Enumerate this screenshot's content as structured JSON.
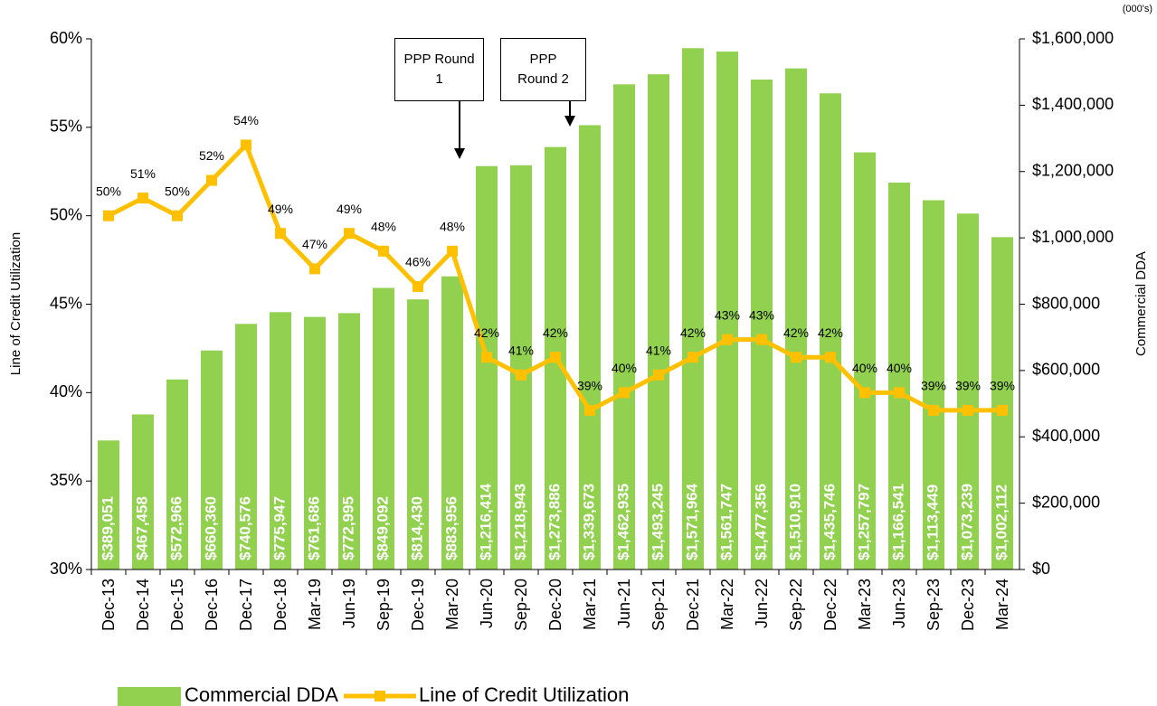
{
  "chart_data": {
    "type": "bar_line",
    "y_label": "Line of Credit Utilization",
    "y2_label": "Commercial DDA",
    "unit_note": "(000's)",
    "annotations": [
      {
        "text": "PPP Round 1"
      },
      {
        "text": "PPP Round 2"
      }
    ],
    "categories": [
      "Dec-13",
      "Dec-14",
      "Dec-15",
      "Dec-16",
      "Dec-17",
      "Dec-18",
      "Mar-19",
      "Jun-19",
      "Sep-19",
      "Dec-19",
      "Mar-20",
      "Jun-20",
      "Sep-20",
      "Dec-20",
      "Mar-21",
      "Jun-21",
      "Sep-21",
      "Dec-21",
      "Mar-22",
      "Jun-22",
      "Sep-22",
      "Dec-22",
      "Mar-23",
      "Jun-23",
      "Sep-23",
      "Dec-23",
      "Mar-24"
    ],
    "series": [
      {
        "name": "Commercial DDA",
        "kind": "bar",
        "axis": "y2",
        "color": "#92d050",
        "values": [
          389051,
          467458,
          572966,
          660360,
          740576,
          775947,
          761686,
          772995,
          849092,
          814430,
          883956,
          1216414,
          1218943,
          1273886,
          1339673,
          1462935,
          1493245,
          1571964,
          1561747,
          1477356,
          1510910,
          1435746,
          1257797,
          1166541,
          1113449,
          1073239,
          1002112
        ],
        "value_labels": [
          "$389,051",
          "$467,458",
          "$572,966",
          "$660,360",
          "$740,576",
          "$775,947",
          "$761,686",
          "$772,995",
          "$849,092",
          "$814,430",
          "$883,956",
          "$1,216,414",
          "$1,218,943",
          "$1,273,886",
          "$1,339,673",
          "$1,462,935",
          "$1,493,245",
          "$1,571,964",
          "$1,561,747",
          "$1,477,356",
          "$1,510,910",
          "$1,435,746",
          "$1,257,797",
          "$1,166,541",
          "$1,113,449",
          "$1,073,239",
          "$1,002,112"
        ]
      },
      {
        "name": "Line of Credit Utilization",
        "kind": "line",
        "axis": "y",
        "color": "#ffc000",
        "values": [
          50,
          51,
          50,
          52,
          54,
          49,
          47,
          49,
          48,
          46,
          48,
          42,
          41,
          42,
          39,
          40,
          41,
          42,
          43,
          43,
          42,
          42,
          40,
          40,
          39,
          39,
          39
        ],
        "value_labels": [
          "50%",
          "51%",
          "50%",
          "52%",
          "54%",
          "49%",
          "47%",
          "49%",
          "48%",
          "46%",
          "48%",
          "42%",
          "41%",
          "42%",
          "39%",
          "40%",
          "41%",
          "42%",
          "43%",
          "43%",
          "42%",
          "42%",
          "40%",
          "40%",
          "39%",
          "39%",
          "39%"
        ]
      }
    ],
    "ylim": [
      30,
      60
    ],
    "yticks": [
      {
        "value": 30,
        "label": "30%"
      },
      {
        "value": 35,
        "label": "35%"
      },
      {
        "value": 40,
        "label": "40%"
      },
      {
        "value": 45,
        "label": "45%"
      },
      {
        "value": 50,
        "label": "50%"
      },
      {
        "value": 55,
        "label": "55%"
      },
      {
        "value": 60,
        "label": "60%"
      }
    ],
    "y2lim": [
      0,
      1600000
    ],
    "y2ticks": [
      {
        "value": 0,
        "label": "$0"
      },
      {
        "value": 200000,
        "label": "$200,000"
      },
      {
        "value": 400000,
        "label": "$400,000"
      },
      {
        "value": 600000,
        "label": "$600,000"
      },
      {
        "value": 800000,
        "label": "$800,000"
      },
      {
        "value": 1000000,
        "label": "$1,000,000"
      },
      {
        "value": 1200000,
        "label": "$1,200,000"
      },
      {
        "value": 1400000,
        "label": "$1,400,000"
      },
      {
        "value": 1600000,
        "label": "$1,600,000"
      }
    ],
    "legend": "bottom-left",
    "grid": false
  }
}
